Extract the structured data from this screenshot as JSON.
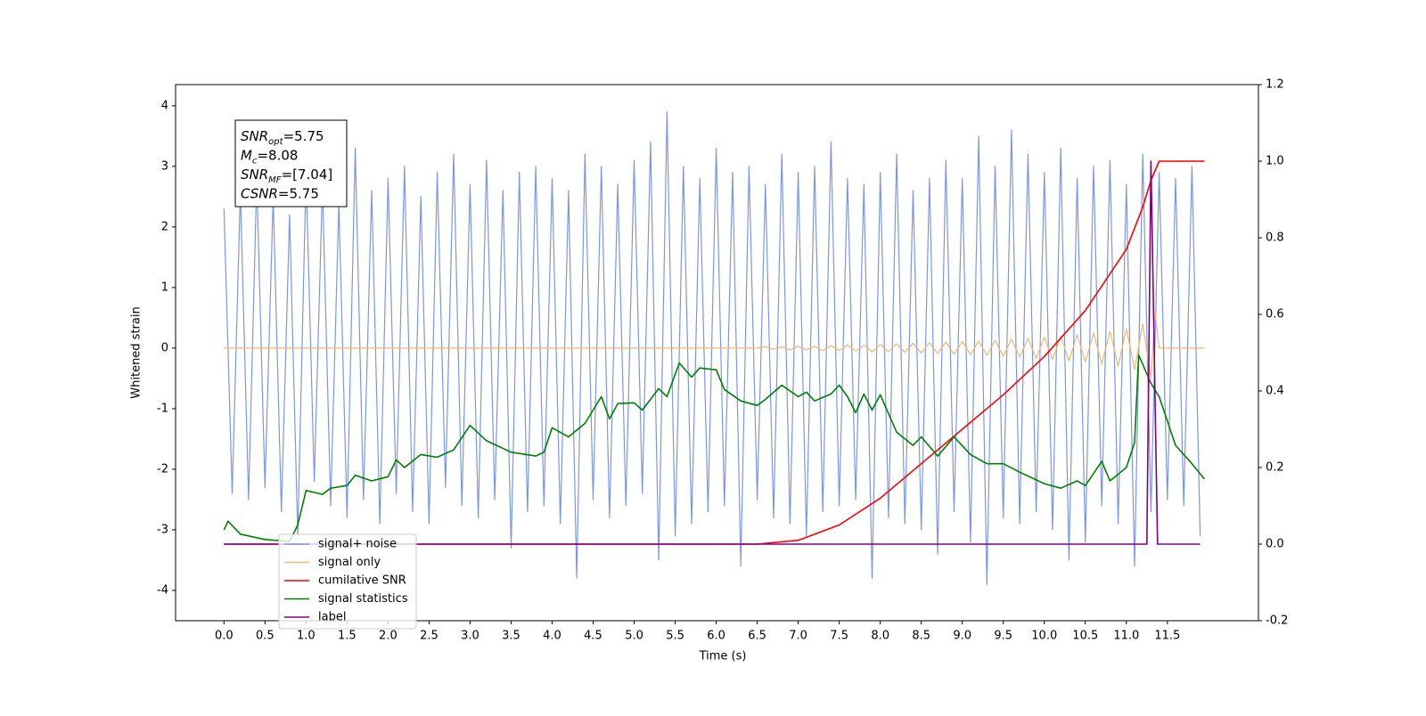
{
  "chart_data": {
    "type": "line",
    "xlabel": "Time (s)",
    "ylabel": "Whitened strain",
    "xlim": [
      -0.59,
      12.61
    ],
    "ylim": [
      -4.5,
      4.35
    ],
    "y2lim": [
      -0.2,
      1.2
    ],
    "xticks": [
      {
        "value": 0,
        "label": "0.0"
      },
      0.5,
      {
        "value": 1,
        "label": "1.0"
      },
      1.5,
      {
        "value": 2,
        "label": "2.0"
      },
      2.5,
      {
        "value": 3,
        "label": "3.0"
      },
      3.5,
      {
        "value": 4,
        "label": "4.0"
      },
      4.5,
      {
        "value": 5,
        "label": "5.0"
      },
      5.5,
      {
        "value": 6,
        "label": "6.0"
      },
      6.5,
      {
        "value": 7,
        "label": "7.0"
      },
      7.5,
      {
        "value": 8,
        "label": "8.0"
      },
      8.5,
      {
        "value": 9,
        "label": "9.0"
      },
      9.5,
      {
        "value": 10,
        "label": "10.0"
      },
      10.5,
      {
        "value": 11,
        "label": "11.0"
      },
      11.5
    ],
    "yticks": [
      -4,
      -3,
      -2,
      -1,
      0,
      1,
      2,
      3,
      4
    ],
    "y2ticks": [
      -0.2,
      {
        "value": 0,
        "label": "0.0"
      },
      0.2,
      0.4,
      0.6,
      0.8,
      {
        "value": 1,
        "label": "1.0"
      },
      1.2
    ],
    "legend": "lower left",
    "annotation": [
      {
        "main": "SNR",
        "sub": "opt",
        "rest": "=5.75"
      },
      {
        "main": "M",
        "sub": "c",
        "rest": "=8.08"
      },
      {
        "main": "SNR",
        "sub": "MF",
        "rest": "=[7.04]"
      },
      {
        "main": "CSNR",
        "rest": "=5.75"
      }
    ],
    "series": [
      {
        "name": "signal+ noise",
        "color": "#7b96e8",
        "x": [
          0,
          0.1,
          0.2,
          0.3,
          0.4,
          0.5,
          0.6,
          0.7,
          0.8,
          0.9,
          1,
          1.1,
          1.2,
          1.3,
          1.4,
          1.5,
          1.6,
          1.7,
          1.8,
          1.9,
          2,
          2.1,
          2.2,
          2.3,
          2.4,
          2.5,
          2.6,
          2.7,
          2.8,
          2.9,
          3,
          3.1,
          3.2,
          3.3,
          3.4,
          3.5,
          3.6,
          3.7,
          3.8,
          3.9,
          4,
          4.1,
          4.2,
          4.3,
          4.4,
          4.5,
          4.6,
          4.7,
          4.8,
          4.9,
          5,
          5.1,
          5.2,
          5.3,
          5.4,
          5.5,
          5.6,
          5.7,
          5.8,
          5.9,
          6,
          6.1,
          6.2,
          6.3,
          6.4,
          6.5,
          6.6,
          6.7,
          6.8,
          6.9,
          7,
          7.1,
          7.2,
          7.3,
          7.4,
          7.5,
          7.6,
          7.7,
          7.8,
          7.9,
          8,
          8.1,
          8.2,
          8.3,
          8.4,
          8.5,
          8.6,
          8.7,
          8.8,
          8.9,
          9,
          9.1,
          9.2,
          9.3,
          9.4,
          9.5,
          9.6,
          9.7,
          9.8,
          9.9,
          10,
          10.1,
          10.2,
          10.3,
          10.4,
          10.5,
          10.6,
          10.7,
          10.8,
          10.9,
          11,
          11.1,
          11.2,
          11.3,
          11.4,
          11.5,
          11.6,
          11.7,
          11.8,
          11.9
        ],
        "values": [
          2.3,
          -2.4,
          2.6,
          -2.5,
          2.8,
          -2.3,
          2.5,
          -2.7,
          2.2,
          -3.1,
          2.9,
          -2.2,
          2.7,
          -2.6,
          2.4,
          -2.8,
          3.3,
          -2.5,
          2.6,
          -2.9,
          2.8,
          -2.4,
          3.0,
          -2.7,
          2.5,
          -2.9,
          2.9,
          -2.3,
          3.2,
          -2.6,
          2.7,
          -2.8,
          3.1,
          -2.5,
          2.6,
          -3.3,
          2.9,
          -2.7,
          3.0,
          -2.6,
          2.8,
          -2.9,
          2.6,
          -3.8,
          3.2,
          -2.5,
          3.0,
          -2.8,
          2.7,
          -2.6,
          3.1,
          -2.4,
          3.4,
          -3.5,
          3.9,
          -3.1,
          3.0,
          -2.9,
          2.8,
          -2.7,
          3.3,
          -2.6,
          2.9,
          -3.6,
          3.0,
          -2.5,
          2.7,
          -2.8,
          3.2,
          -2.9,
          2.9,
          -3.1,
          3.0,
          -2.7,
          3.4,
          -2.6,
          2.8,
          -2.5,
          2.7,
          -3.8,
          2.9,
          -2.8,
          3.2,
          -2.9,
          2.6,
          -3.0,
          2.8,
          -3.4,
          3.1,
          -2.7,
          2.8,
          -3.2,
          3.5,
          -3.9,
          3.0,
          -2.8,
          3.6,
          -2.9,
          3.2,
          -2.7,
          2.9,
          -3.0,
          3.3,
          -3.5,
          2.8,
          -3.2,
          3.0,
          -2.6,
          3.1,
          -2.9,
          2.7,
          -3.6,
          3.2,
          -2.7,
          2.9,
          -2.5,
          2.8,
          -2.6,
          3.0,
          -3.1
        ]
      },
      {
        "name": "signal only",
        "color": "#f2b86b",
        "x": [
          0,
          6.5,
          6.6,
          6.7,
          6.8,
          6.9,
          7,
          7.1,
          7.2,
          7.3,
          7.4,
          7.5,
          7.6,
          7.7,
          7.8,
          7.9,
          8,
          8.1,
          8.2,
          8.3,
          8.4,
          8.5,
          8.6,
          8.7,
          8.8,
          8.9,
          9,
          9.1,
          9.2,
          9.3,
          9.4,
          9.5,
          9.6,
          9.7,
          9.8,
          9.9,
          10,
          10.1,
          10.2,
          10.3,
          10.4,
          10.5,
          10.6,
          10.7,
          10.8,
          10.9,
          11,
          11.1,
          11.2,
          11.3,
          11.35,
          11.4,
          11.95
        ],
        "values": [
          0,
          0,
          0.02,
          -0.02,
          0.02,
          -0.03,
          0.03,
          -0.03,
          0.03,
          -0.04,
          0.04,
          -0.04,
          0.05,
          -0.05,
          0.05,
          -0.06,
          0.06,
          -0.06,
          0.07,
          -0.07,
          0.08,
          -0.08,
          0.09,
          -0.09,
          0.1,
          -0.1,
          0.11,
          -0.11,
          0.12,
          -0.12,
          0.13,
          -0.14,
          0.15,
          -0.15,
          0.16,
          -0.17,
          0.18,
          -0.19,
          0.2,
          -0.21,
          0.22,
          -0.23,
          0.25,
          -0.26,
          0.28,
          -0.3,
          0.32,
          -0.35,
          0.4,
          -0.5,
          0.6,
          0,
          0
        ]
      },
      {
        "name": "cumilative SNR",
        "color": "#ff0000",
        "axis": "y2",
        "x": [
          0,
          6.5,
          7,
          7.5,
          8,
          8.5,
          9,
          9.5,
          10,
          10.5,
          11,
          11.2,
          11.3,
          11.4,
          11.95
        ],
        "values": [
          0,
          0,
          0.01,
          0.05,
          0.12,
          0.21,
          0.3,
          0.39,
          0.49,
          0.61,
          0.77,
          0.88,
          0.95,
          1,
          1
        ]
      },
      {
        "name": "signal statistics",
        "color": "#008000",
        "axis": "y2",
        "x": [
          0,
          0.05,
          0.2,
          0.5,
          0.8,
          0.9,
          1,
          1.2,
          1.3,
          1.5,
          1.6,
          1.8,
          2,
          2.1,
          2.2,
          2.4,
          2.6,
          2.8,
          3,
          3.2,
          3.5,
          3.8,
          3.9,
          4,
          4.2,
          4.4,
          4.6,
          4.7,
          4.8,
          5,
          5.1,
          5.3,
          5.4,
          5.55,
          5.7,
          5.8,
          6,
          6.1,
          6.3,
          6.5,
          6.6,
          6.8,
          7,
          7.1,
          7.2,
          7.4,
          7.5,
          7.6,
          7.7,
          7.8,
          7.9,
          8,
          8.2,
          8.4,
          8.5,
          8.7,
          8.9,
          9.1,
          9.3,
          9.5,
          9.7,
          10,
          10.2,
          10.4,
          10.5,
          10.7,
          10.8,
          11,
          11.1,
          11.15,
          11.3,
          11.4,
          11.6,
          11.8,
          11.95
        ],
        "values": [
          0.037,
          0.06,
          0.026,
          0.012,
          0.007,
          0.05,
          0.14,
          0.13,
          0.146,
          0.153,
          0.18,
          0.165,
          0.176,
          0.22,
          0.2,
          0.234,
          0.227,
          0.246,
          0.31,
          0.27,
          0.24,
          0.23,
          0.24,
          0.304,
          0.28,
          0.315,
          0.385,
          0.327,
          0.367,
          0.369,
          0.35,
          0.406,
          0.385,
          0.473,
          0.436,
          0.46,
          0.455,
          0.404,
          0.374,
          0.362,
          0.378,
          0.415,
          0.385,
          0.397,
          0.374,
          0.392,
          0.415,
          0.385,
          0.343,
          0.392,
          0.35,
          0.39,
          0.292,
          0.258,
          0.28,
          0.23,
          0.28,
          0.234,
          0.21,
          0.21,
          0.188,
          0.158,
          0.146,
          0.165,
          0.153,
          0.216,
          0.165,
          0.2,
          0.265,
          0.494,
          0.42,
          0.385,
          0.258,
          0.21,
          0.17
        ]
      },
      {
        "name": "label",
        "color": "#800080",
        "axis": "y2",
        "x": [
          0,
          11.25,
          11.3,
          11.38,
          11.9
        ],
        "values": [
          0,
          0,
          1,
          0,
          0
        ]
      }
    ]
  }
}
